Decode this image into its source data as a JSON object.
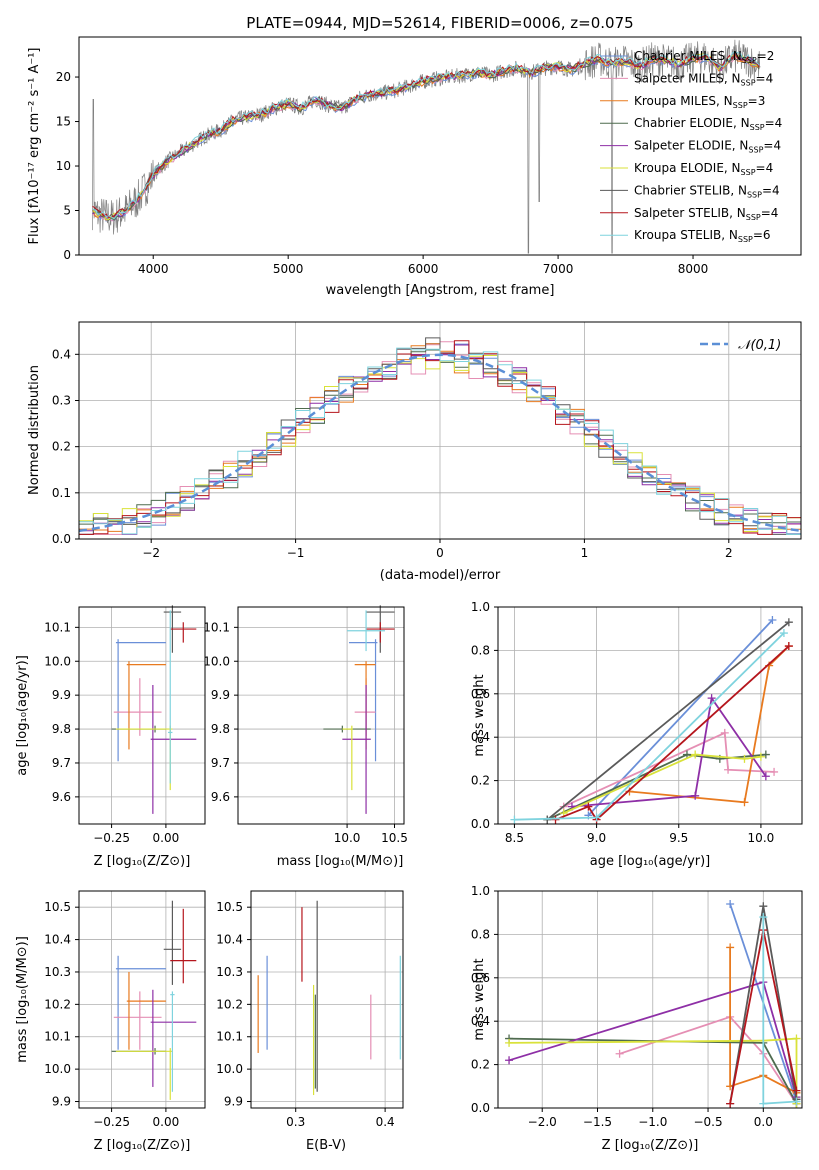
{
  "title": "PLATE=0944, MJD=52614, FIBERID=0006, z=0.075",
  "colors": {
    "chabrier_miles": "#6a8fd8",
    "salpeter_miles": "#e58fb4",
    "kroupa_miles": "#e87a1f",
    "chabrier_elodie": "#4f6b4f",
    "salpeter_elodie": "#8e2fa6",
    "kroupa_elodie": "#d9e23a",
    "chabrier_stelib": "#5a5a5a",
    "salpeter_stelib": "#b5161d",
    "kroupa_stelib": "#7fd3de",
    "data": "#808080",
    "normal": "#5b8fd6",
    "green": "#8ccf3a"
  },
  "chart_data": [
    {
      "type": "line",
      "xlabel": "wavelength [Angstrom, rest frame]",
      "ylabel": "Flux [fλ10⁻¹⁷ erg cm⁻² s⁻¹ A⁻¹]",
      "xlim": [
        3450,
        8800
      ],
      "ylim": [
        0,
        24.5
      ],
      "xticks": [
        "4000",
        "5000",
        "6000",
        "7000",
        "8000"
      ],
      "yticks": [
        "0",
        "5",
        "10",
        "15",
        "20"
      ],
      "spectrum_x": [
        3550,
        3600,
        3700,
        3800,
        3900,
        4000,
        4100,
        4200,
        4300,
        4400,
        4500,
        4600,
        4700,
        4800,
        4900,
        5000,
        5100,
        5200,
        5300,
        5400,
        5500,
        5600,
        5700,
        5800,
        5900,
        6000,
        6100,
        6200,
        6300,
        6400,
        6500,
        6600,
        6700,
        6800,
        6900,
        7000,
        7100,
        7200,
        7300,
        7400,
        7500,
        7600,
        7700,
        7800,
        7900,
        8000,
        8100,
        8200,
        8300,
        8400,
        8500
      ],
      "spectrum_y": [
        5,
        4.5,
        4.2,
        5,
        6.5,
        9,
        10.5,
        11.5,
        12.5,
        13.5,
        14,
        15.2,
        15.5,
        15.8,
        16.5,
        17,
        16.5,
        17.5,
        16.8,
        16.5,
        17.5,
        18,
        18.2,
        18.5,
        19,
        19.5,
        19.8,
        20,
        20.2,
        20.5,
        20.2,
        20.7,
        21,
        20.5,
        21,
        21.2,
        20.8,
        21.5,
        22,
        21.5,
        21.8,
        21.2,
        22,
        21.8,
        21.5,
        22,
        22.3,
        21,
        22.3,
        22,
        21.2
      ],
      "legend": [
        {
          "label_pre": "Chabrier MILES, N",
          "label_sub": "SSP",
          "label_post": "=2",
          "color_key": "chabrier_miles"
        },
        {
          "label_pre": "Salpeter MILES, N",
          "label_sub": "SSP",
          "label_post": "=4",
          "color_key": "salpeter_miles"
        },
        {
          "label_pre": "Kroupa MILES, N",
          "label_sub": "SSP",
          "label_post": "=3",
          "color_key": "kroupa_miles"
        },
        {
          "label_pre": "Chabrier ELODIE, N",
          "label_sub": "SSP",
          "label_post": "=4",
          "color_key": "chabrier_elodie"
        },
        {
          "label_pre": "Salpeter ELODIE, N",
          "label_sub": "SSP",
          "label_post": "=4",
          "color_key": "salpeter_elodie"
        },
        {
          "label_pre": "Kroupa ELODIE, N",
          "label_sub": "SSP",
          "label_post": "=4",
          "color_key": "kroupa_elodie"
        },
        {
          "label_pre": "Chabrier STELIB, N",
          "label_sub": "SSP",
          "label_post": "=4",
          "color_key": "chabrier_stelib"
        },
        {
          "label_pre": "Salpeter STELIB, N",
          "label_sub": "SSP",
          "label_post": "=4",
          "color_key": "salpeter_stelib"
        },
        {
          "label_pre": "Kroupa STELIB, N",
          "label_sub": "SSP",
          "label_post": "=6",
          "color_key": "kroupa_stelib"
        }
      ]
    },
    {
      "type": "histogram",
      "xlabel": "(data-model)/error",
      "ylabel": "Normed distribution",
      "xlim": [
        -2.5,
        2.5
      ],
      "ylim": [
        0,
        0.47
      ],
      "xticks": [
        "−2",
        "−1",
        "0",
        "1",
        "2"
      ],
      "yticks": [
        "0.0",
        "0.1",
        "0.2",
        "0.3",
        "0.4"
      ],
      "legend_label": "𝒩(0,1)",
      "bin_width": 0.1
    },
    {
      "type": "scatter",
      "xlabel": "Z [log₁₀(Z/Z⊙)]",
      "ylabel": "age  [log₁₀(age/yr)]",
      "xticks": [
        "−0.25",
        "0.00"
      ],
      "yticks": [
        "9.6",
        "9.7",
        "9.8",
        "9.9",
        "10.0",
        "10.1"
      ]
    },
    {
      "type": "scatter",
      "xlabel": "mass [log₁₀(M/M⊙)]",
      "ylabel": "",
      "xticks": [
        "10.0",
        "10.5"
      ],
      "yticks": [
        "9.6",
        "9.7",
        "9.8",
        "9.9",
        "10.0",
        "10.1"
      ]
    },
    {
      "type": "line",
      "xlabel": "age  [log₁₀(age/yr)]",
      "ylabel": "mass weight",
      "xlim": [
        8.4,
        10.25
      ],
      "ylim": [
        0,
        1
      ],
      "xticks": [
        "8.5",
        "9.0",
        "9.5",
        "10.0"
      ],
      "yticks": [
        "0.0",
        "0.2",
        "0.4",
        "0.6",
        "0.8",
        "1.0"
      ]
    },
    {
      "type": "scatter",
      "xlabel": "Z [log₁₀(Z/Z⊙)]",
      "ylabel": "mass [log₁₀(M/M⊙)]",
      "xticks": [
        "−0.25",
        "0.00"
      ],
      "yticks": [
        "9.9",
        "10.0",
        "10.1",
        "10.2",
        "10.3",
        "10.4",
        "10.5"
      ]
    },
    {
      "type": "scatter",
      "xlabel": "E(B-V)",
      "ylabel": "",
      "xticks": [
        "0.3",
        "0.4"
      ],
      "yticks": [
        "9.9",
        "10.0",
        "10.1",
        "10.2",
        "10.3",
        "10.4",
        "10.5"
      ]
    },
    {
      "type": "line",
      "xlabel": "Z [log₁₀(Z/Z⊙)]",
      "ylabel": "mass weight",
      "xlim": [
        -2.4,
        0.35
      ],
      "ylim": [
        0,
        1
      ],
      "xticks": [
        "−2.0",
        "−1.5",
        "−1.0",
        "−0.5",
        "0.0"
      ],
      "yticks": [
        "0.0",
        "0.2",
        "0.4",
        "0.6",
        "0.8",
        "1.0"
      ]
    }
  ]
}
